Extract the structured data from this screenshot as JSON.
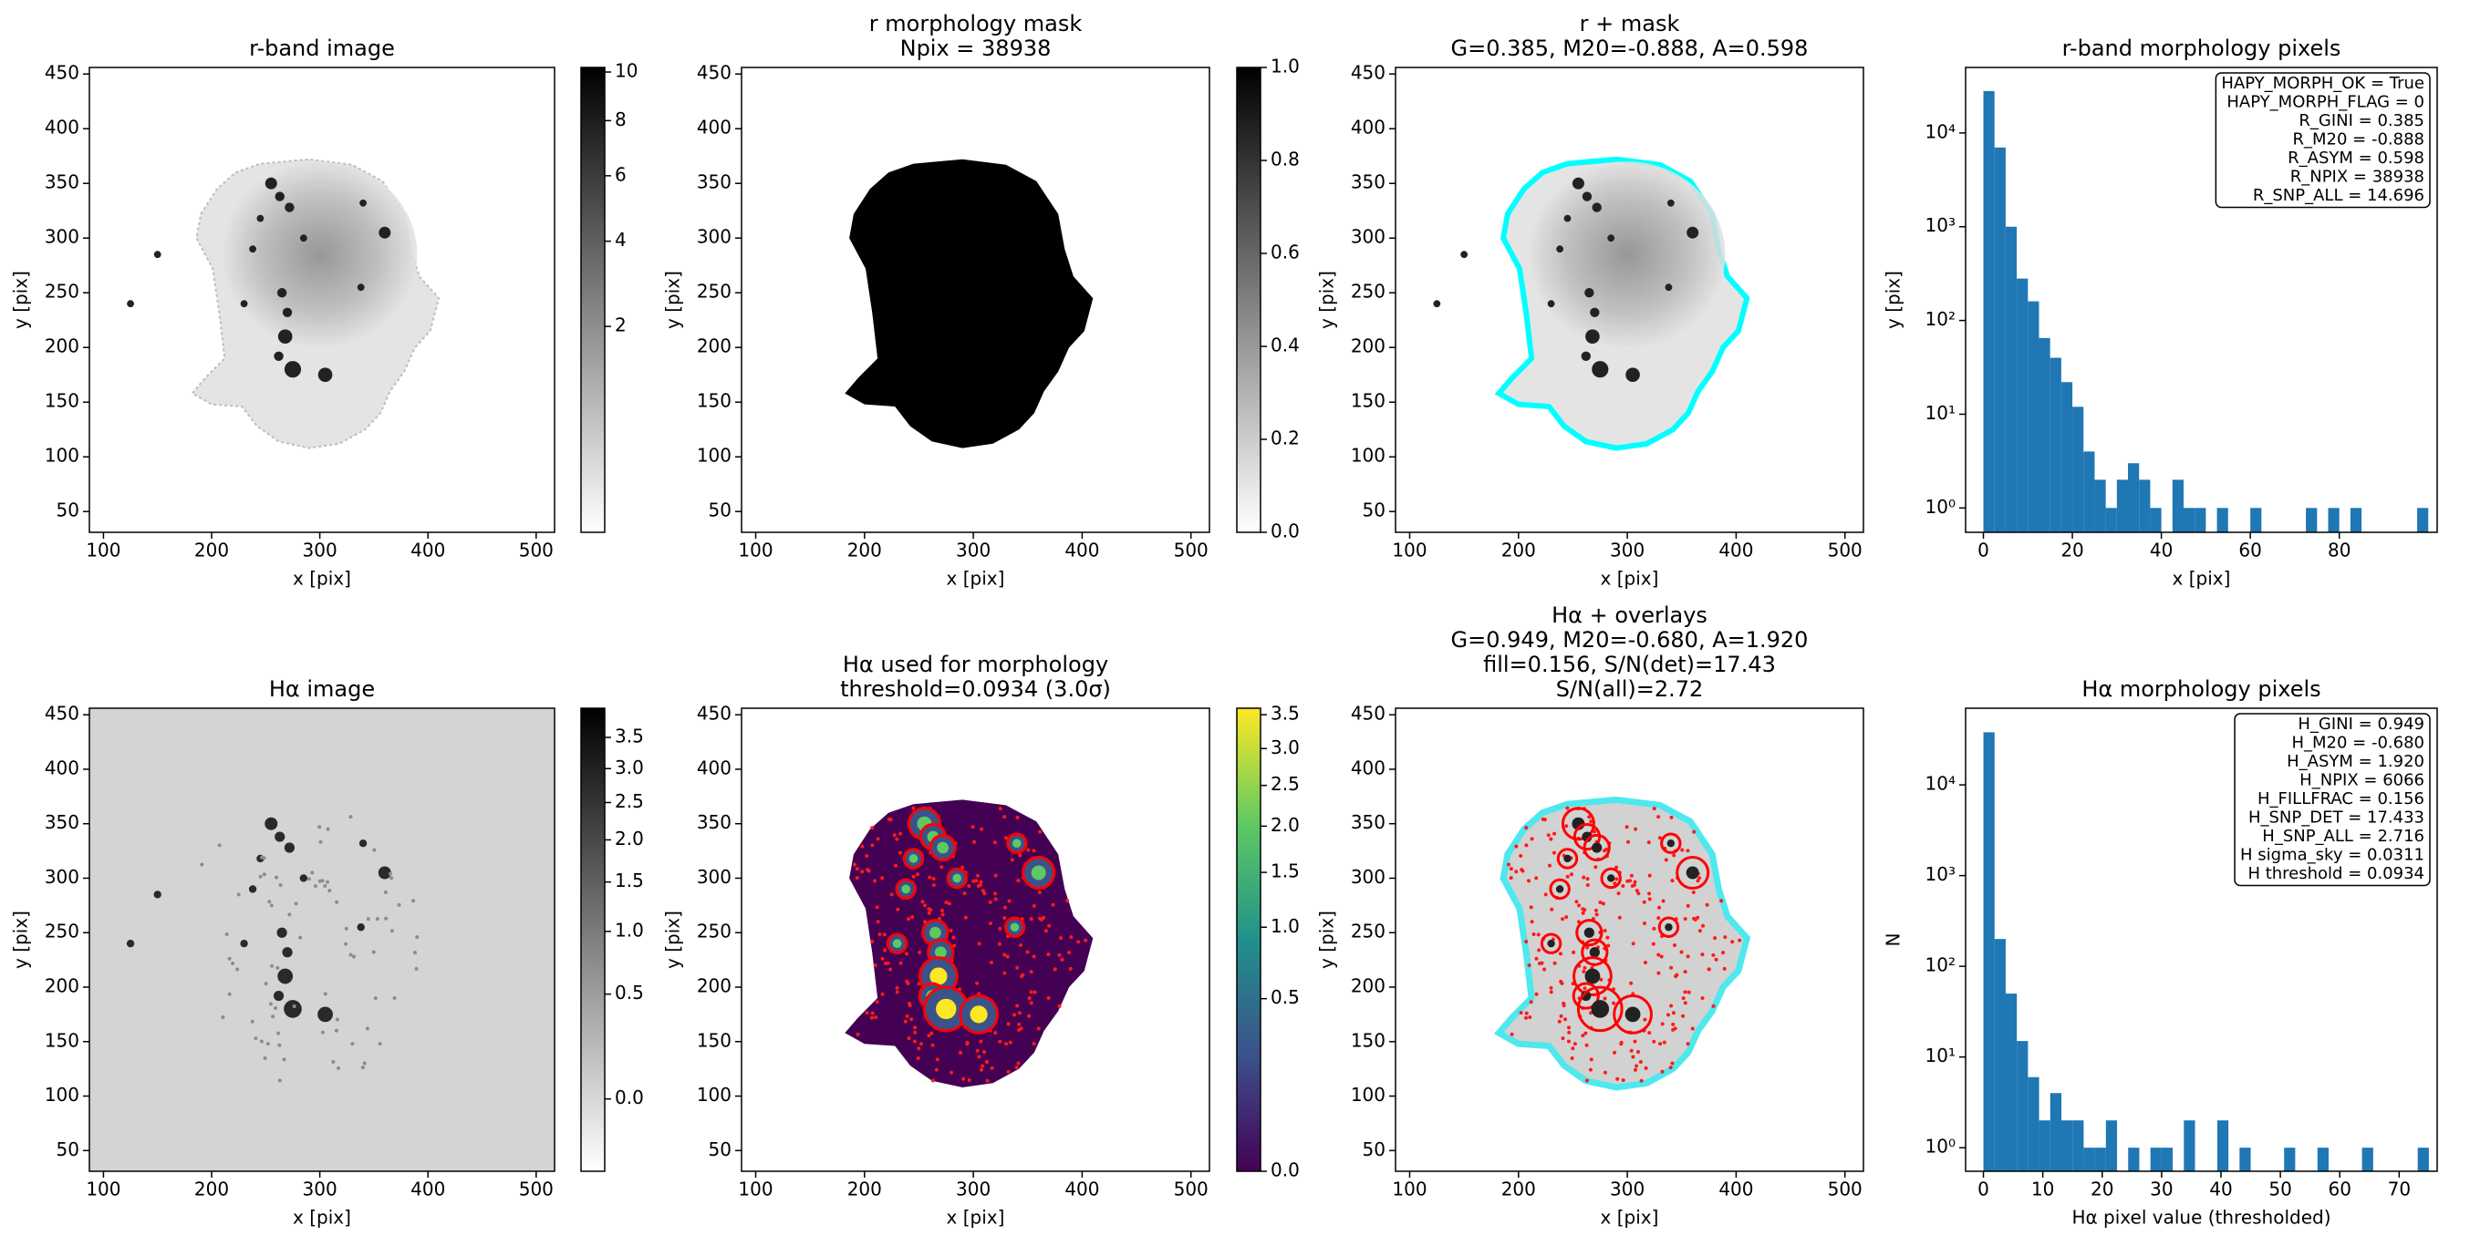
{
  "chart_data": [
    {
      "type": "image",
      "title": [
        "r-band image"
      ],
      "xlabel": "x [pix]",
      "ylabel": "y [pix]",
      "xlim": [
        87,
        517
      ],
      "ylim": [
        31,
        456
      ],
      "xticks": [
        100,
        200,
        300,
        400,
        500
      ],
      "yticks": [
        50,
        100,
        150,
        200,
        250,
        300,
        350,
        400,
        450
      ],
      "cmap": "gray_r",
      "colorbar": {
        "clim": [
          0,
          10.2
        ],
        "stretch": "sqrt",
        "ticks": [
          2,
          4,
          6,
          8,
          10
        ]
      }
    },
    {
      "type": "image",
      "title": [
        "r morphology mask",
        "Npix = 38938"
      ],
      "xlabel": "x [pix]",
      "ylabel": "y [pix]",
      "xlim": [
        87,
        517
      ],
      "ylim": [
        31,
        456
      ],
      "xticks": [
        100,
        200,
        300,
        400,
        500
      ],
      "yticks": [
        50,
        100,
        150,
        200,
        250,
        300,
        350,
        400,
        450
      ],
      "cmap": "gray_r",
      "colorbar": {
        "clim": [
          0,
          1
        ],
        "stretch": "linear",
        "ticks": [
          {
            "value": 0,
            "label": "0.0"
          },
          {
            "value": 0.2,
            "label": "0.2"
          },
          {
            "value": 0.4,
            "label": "0.4"
          },
          {
            "value": 0.6,
            "label": "0.6"
          },
          {
            "value": 0.8,
            "label": "0.8"
          },
          {
            "value": 1,
            "label": "1.0"
          }
        ]
      }
    },
    {
      "type": "image",
      "title": [
        "r + mask",
        "G=0.385, M20=-0.888, A=0.598"
      ],
      "xlabel": "x [pix]",
      "ylabel": "y [pix]",
      "xlim": [
        87,
        517
      ],
      "ylim": [
        31,
        456
      ],
      "xticks": [
        100,
        200,
        300,
        400,
        500
      ],
      "yticks": [
        50,
        100,
        150,
        200,
        250,
        300,
        350,
        400,
        450
      ],
      "cmap": "gray_r"
    },
    {
      "type": "histogram",
      "title": [
        "r-band morphology pixels"
      ],
      "xlabel": "x [pix]",
      "ylabel": "y [pix]",
      "color": "#1f77b4",
      "log_y": true,
      "bins": [
        0,
        2.5,
        5,
        7.5,
        10,
        12.5,
        15,
        17.5,
        20,
        22.5,
        25,
        27.5,
        30,
        32.5,
        35,
        37.5,
        40,
        42.5,
        45,
        47.5,
        50,
        52.5,
        55,
        57.5,
        60,
        62.5,
        65,
        67.5,
        70,
        72.5,
        75,
        77.5,
        80,
        82.5,
        85,
        87.5,
        90,
        92.5,
        95,
        97.5,
        100
      ],
      "counts": [
        28000,
        7000,
        1000,
        280,
        160,
        65,
        40,
        22,
        12,
        4,
        2,
        1,
        2,
        3,
        2,
        1,
        0,
        2,
        1,
        1,
        0,
        1,
        0,
        0,
        1,
        0,
        0,
        0,
        0,
        1,
        0,
        1,
        0,
        1,
        0,
        0,
        0,
        0,
        0,
        1
      ],
      "xlim": [
        -4,
        102
      ],
      "xticks": [
        0,
        20,
        40,
        60,
        80
      ],
      "ylim": [
        0.55,
        50000
      ],
      "yticks": [
        {
          "value": 1,
          "label": "10⁰"
        },
        {
          "value": 10,
          "label": "10¹"
        },
        {
          "value": 100,
          "label": "10²"
        },
        {
          "value": 1000,
          "label": "10³"
        },
        {
          "value": 10000,
          "label": "10⁴"
        }
      ],
      "annotation": [
        "HAPY_MORPH_OK = True",
        "HAPY_MORPH_FLAG = 0",
        "R_GINI = 0.385",
        "R_M20 = -0.888",
        "R_ASYM = 0.598",
        "R_NPIX = 38938",
        "R_SNP_ALL = 14.696"
      ]
    },
    {
      "type": "image",
      "title": [
        "Hα image"
      ],
      "xlabel": "x [pix]",
      "ylabel": "y [pix]",
      "xlim": [
        87,
        517
      ],
      "ylim": [
        31,
        456
      ],
      "xticks": [
        100,
        200,
        300,
        400,
        500
      ],
      "yticks": [
        50,
        100,
        150,
        200,
        250,
        300,
        350,
        400,
        450
      ],
      "cmap": "gray_r",
      "colorbar": {
        "clim": [
          -0.1,
          4.0
        ],
        "stretch": "sqrt",
        "ticks": [
          {
            "value": 0,
            "label": "0.0"
          },
          {
            "value": 0.5,
            "label": "0.5"
          },
          {
            "value": 1,
            "label": "1.0"
          },
          {
            "value": 1.5,
            "label": "1.5"
          },
          {
            "value": 2,
            "label": "2.0"
          },
          {
            "value": 2.5,
            "label": "2.5"
          },
          {
            "value": 3,
            "label": "3.0"
          },
          {
            "value": 3.5,
            "label": "3.5"
          }
        ]
      }
    },
    {
      "type": "image",
      "title": [
        "Hα used for morphology",
        "threshold=0.0934 (3.0σ)"
      ],
      "xlabel": "x [pix]",
      "ylabel": "y [pix]",
      "xlim": [
        87,
        517
      ],
      "ylim": [
        31,
        456
      ],
      "xticks": [
        100,
        200,
        300,
        400,
        500
      ],
      "yticks": [
        50,
        100,
        150,
        200,
        250,
        300,
        350,
        400,
        450
      ],
      "cmap": "viridis",
      "colorbar": {
        "clim": [
          0,
          3.6
        ],
        "stretch": "sqrt",
        "ticks": [
          {
            "value": 0,
            "label": "0.0"
          },
          {
            "value": 0.5,
            "label": "0.5"
          },
          {
            "value": 1,
            "label": "1.0"
          },
          {
            "value": 1.5,
            "label": "1.5"
          },
          {
            "value": 2,
            "label": "2.0"
          },
          {
            "value": 2.5,
            "label": "2.5"
          },
          {
            "value": 3,
            "label": "3.0"
          },
          {
            "value": 3.5,
            "label": "3.5"
          }
        ]
      }
    },
    {
      "type": "image",
      "title": [
        "Hα + overlays",
        "G=0.949, M20=-0.680, A=1.920",
        "fill=0.156, S/N(det)=17.43",
        "S/N(all)=2.72"
      ],
      "xlabel": "x [pix]",
      "ylabel": "y [pix]",
      "xlim": [
        87,
        517
      ],
      "ylim": [
        31,
        456
      ],
      "xticks": [
        100,
        200,
        300,
        400,
        500
      ],
      "yticks": [
        50,
        100,
        150,
        200,
        250,
        300,
        350,
        400,
        450
      ],
      "cmap": "gray_r"
    },
    {
      "type": "histogram",
      "title": [
        "Hα morphology pixels"
      ],
      "xlabel": "Hα pixel value (thresholded)",
      "ylabel": "N",
      "color": "#1f77b4",
      "log_y": true,
      "bins": [
        0,
        1.875,
        3.75,
        5.625,
        7.5,
        9.375,
        11.25,
        13.125,
        15,
        16.875,
        18.75,
        20.625,
        22.5,
        24.375,
        26.25,
        28.125,
        30,
        31.875,
        33.75,
        35.625,
        37.5,
        39.375,
        41.25,
        43.125,
        45,
        46.875,
        48.75,
        50.625,
        52.5,
        54.375,
        56.25,
        58.125,
        60,
        61.875,
        63.75,
        65.625,
        67.5,
        69.375,
        71.25,
        73.125,
        75
      ],
      "counts": [
        38000,
        200,
        50,
        15,
        6,
        2,
        4,
        2,
        2,
        1,
        1,
        2,
        0,
        1,
        0,
        1,
        1,
        0,
        2,
        0,
        0,
        2,
        0,
        1,
        0,
        0,
        0,
        1,
        0,
        0,
        1,
        0,
        0,
        0,
        1,
        0,
        0,
        0,
        0,
        1
      ],
      "xlim": [
        -3,
        76.4
      ],
      "xticks": [
        0,
        10,
        20,
        30,
        40,
        50,
        60,
        70
      ],
      "ylim": [
        0.55,
        70000
      ],
      "yticks": [
        {
          "value": 1,
          "label": "10⁰"
        },
        {
          "value": 10,
          "label": "10¹"
        },
        {
          "value": 100,
          "label": "10²"
        },
        {
          "value": 1000,
          "label": "10³"
        },
        {
          "value": 10000,
          "label": "10⁴"
        }
      ],
      "annotation": [
        "H_GINI = 0.949",
        "H_M20 = -0.680",
        "H_ASYM = 1.920",
        "H_NPIX = 6066",
        "H_FILLFRAC = 0.156",
        "H_SNP_DET = 17.433",
        "H_SNP_ALL = 2.716",
        "H sigma_sky = 0.0311",
        "H threshold = 0.0934"
      ]
    }
  ]
}
